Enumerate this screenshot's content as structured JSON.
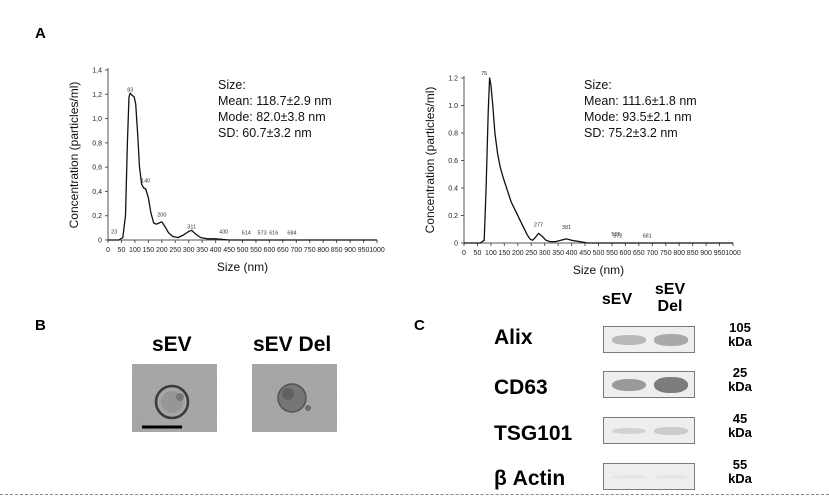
{
  "panels": {
    "a": "A",
    "b": "B",
    "c": "C"
  },
  "chart_data": [
    {
      "type": "line",
      "ylabel": "Concentration (particles/ml)",
      "xlabel": "Size (nm)",
      "xlim": [
        0,
        1000
      ],
      "ylim": [
        0,
        1.4
      ],
      "x_ticks": [
        "0",
        "50",
        "100",
        "150",
        "200",
        "250",
        "300",
        "350",
        "400",
        "450",
        "500",
        "550",
        "600",
        "650",
        "700",
        "750",
        "800",
        "850",
        "900",
        "950",
        "1000"
      ],
      "y_ticks": [
        "0",
        "0,2",
        "0,4",
        "0,6",
        "0,8",
        "1,0",
        "1,2",
        "1,4"
      ],
      "stats": [
        "Size:",
        "Mean: 118.7±2.9 nm",
        "Mode: 82.0±3.8 nm",
        "SD: 60.7±3.2 nm"
      ],
      "peak_labels": [
        {
          "x": 23,
          "y": 0.03,
          "label": "23"
        },
        {
          "x": 83,
          "y": 1.2,
          "label": "83"
        },
        {
          "x": 140,
          "y": 0.45,
          "label": "140"
        },
        {
          "x": 200,
          "y": 0.17,
          "label": "200"
        },
        {
          "x": 311,
          "y": 0.07,
          "label": "311"
        },
        {
          "x": 430,
          "y": 0.03,
          "label": "430"
        },
        {
          "x": 514,
          "y": 0.02,
          "label": "514"
        },
        {
          "x": 573,
          "y": 0.02,
          "label": "573"
        },
        {
          "x": 616,
          "y": 0.02,
          "label": "616"
        },
        {
          "x": 684,
          "y": 0.02,
          "label": "684"
        }
      ],
      "curve": {
        "x": [
          0,
          40,
          55,
          65,
          72,
          78,
          83,
          90,
          97,
          103,
          110,
          117,
          125,
          132,
          140,
          150,
          160,
          170,
          180,
          190,
          200,
          212,
          225,
          240,
          260,
          280,
          300,
          311,
          325,
          345,
          370,
          400,
          450,
          500,
          600,
          700,
          800,
          900,
          1000
        ],
        "y": [
          0,
          0,
          0.02,
          0.2,
          0.8,
          1.18,
          1.21,
          1.19,
          1.18,
          1.12,
          0.88,
          0.6,
          0.46,
          0.43,
          0.42,
          0.35,
          0.22,
          0.14,
          0.13,
          0.14,
          0.15,
          0.11,
          0.06,
          0.03,
          0.02,
          0.04,
          0.07,
          0.08,
          0.05,
          0.02,
          0.01,
          0.01,
          0,
          0,
          0,
          0,
          0,
          0,
          0
        ]
      }
    },
    {
      "type": "line",
      "ylabel": "Concentration (particles/ml)",
      "xlabel": "Size (nm)",
      "xlim": [
        0,
        1000
      ],
      "ylim": [
        0,
        1.2
      ],
      "x_ticks": [
        "0",
        "50",
        "100",
        "150",
        "200",
        "250",
        "300",
        "350",
        "400",
        "450",
        "500",
        "550",
        "600",
        "650",
        "700",
        "750",
        "800",
        "850",
        "900",
        "950",
        "1000"
      ],
      "y_ticks": [
        "0",
        "0.2",
        "0.4",
        "0.6",
        "0.8",
        "1.0",
        "1.2"
      ],
      "stats": [
        "Size:",
        "Mean: 111.6±1.8 nm",
        "Mode: 93.5±2.1 nm",
        "SD: 75.2±3.2 nm"
      ],
      "peak_labels": [
        {
          "x": 75,
          "y": 1.2,
          "label": "75"
        },
        {
          "x": 277,
          "y": 0.1,
          "label": "277"
        },
        {
          "x": 381,
          "y": 0.08,
          "label": "381"
        },
        {
          "x": 572,
          "y": 0.02,
          "label": "572"
        },
        {
          "x": 565,
          "y": 0.03,
          "label": "565"
        },
        {
          "x": 681,
          "y": 0.02,
          "label": "681"
        }
      ],
      "curve": {
        "x": [
          0,
          60,
          75,
          82,
          90,
          95,
          100,
          107,
          115,
          125,
          135,
          145,
          155,
          165,
          175,
          185,
          195,
          205,
          215,
          225,
          235,
          245,
          255,
          265,
          277,
          290,
          305,
          320,
          340,
          360,
          381,
          400,
          430,
          460,
          500,
          600,
          700,
          800,
          900,
          1000
        ],
        "y": [
          0,
          0,
          0.02,
          0.4,
          0.95,
          1.2,
          1.15,
          1.0,
          0.8,
          0.65,
          0.55,
          0.48,
          0.42,
          0.36,
          0.3,
          0.26,
          0.22,
          0.18,
          0.14,
          0.1,
          0.06,
          0.03,
          0.02,
          0.04,
          0.07,
          0.05,
          0.02,
          0.01,
          0.01,
          0.02,
          0.03,
          0.02,
          0.01,
          0,
          0,
          0,
          0,
          0,
          0,
          0
        ]
      }
    }
  ],
  "em": {
    "sev_title": "sEV",
    "sevdel_title": "sEV Del"
  },
  "western": {
    "col1": "sEV",
    "col2": "sEV Del",
    "rows": [
      {
        "protein": "Alix",
        "mw": "105 kDa",
        "intensity1": 0.35,
        "intensity2": 0.45
      },
      {
        "protein": "CD63",
        "mw": "25 kDa",
        "intensity1": 0.55,
        "intensity2": 0.75
      },
      {
        "protein": "TSG101",
        "mw": "45 kDa",
        "intensity1": 0.18,
        "intensity2": 0.22
      },
      {
        "protein": "β Actin",
        "mw": "55 kDa",
        "intensity1": 0.04,
        "intensity2": 0.04
      }
    ]
  },
  "colors": {
    "line": "#111111",
    "axis": "#555555",
    "band": "#555555"
  }
}
